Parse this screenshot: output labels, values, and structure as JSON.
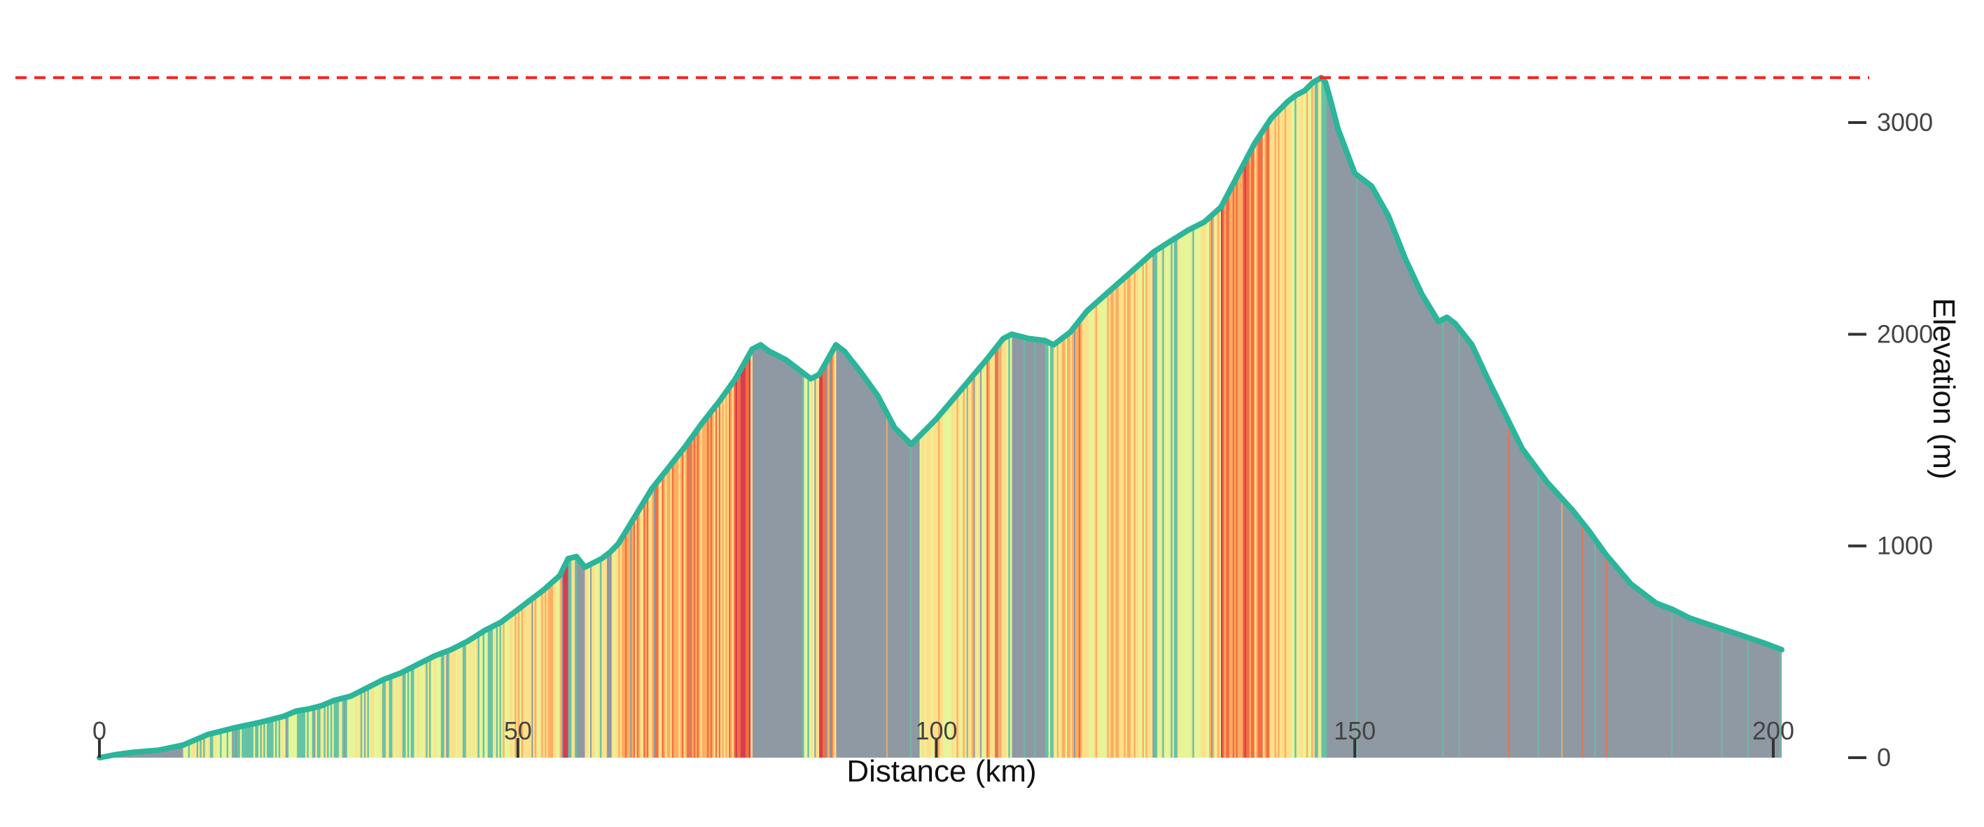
{
  "chart_data": {
    "type": "area",
    "title": "",
    "xlabel": "Distance (km)",
    "ylabel": "Elevation (m)",
    "xlim": [
      0,
      201.5
    ],
    "ylim": [
      0,
      3300
    ],
    "x_ticks": [
      0,
      50,
      100,
      150,
      200
    ],
    "y_ticks": [
      0,
      1000,
      2000,
      3000
    ],
    "x_tick_labels": [
      "0",
      "50",
      "100",
      "150",
      "200"
    ],
    "y_tick_labels": [
      "0",
      "1000",
      "2000",
      "3000"
    ],
    "grid": false,
    "y_axis_side": "right",
    "reference_line": {
      "y": 3212,
      "style": "dashed",
      "color": "#ff2020"
    },
    "colors": {
      "profile_line": "#2bb59a",
      "descent": "#8f99a3",
      "gradient_classes": [
        "#66c2a5",
        "#e6f598",
        "#fee08b",
        "#fdae61",
        "#f46d43",
        "#d53e4f",
        "#9e0142"
      ]
    },
    "profile": {
      "x": [
        0,
        2,
        4,
        7,
        10,
        13,
        16,
        19,
        22,
        23.5,
        25,
        26.5,
        28,
        30,
        32,
        34,
        36,
        38,
        40,
        42,
        44,
        46,
        48,
        50,
        51,
        53,
        55,
        56,
        57,
        58,
        59,
        60,
        61,
        62,
        64,
        66,
        68,
        70,
        72,
        74,
        76,
        77,
        78,
        79,
        80,
        81,
        82,
        83,
        84,
        85,
        86,
        87,
        88,
        89,
        91,
        93,
        95,
        97,
        98,
        100,
        103,
        106,
        108,
        109,
        111,
        113,
        114,
        116,
        118,
        120,
        122,
        124,
        126,
        128,
        130,
        132,
        134,
        136,
        138,
        140,
        142,
        143,
        144,
        145,
        146,
        146.5,
        147,
        148,
        150,
        152,
        154,
        156,
        158,
        160,
        161,
        162,
        163,
        164,
        166,
        168,
        170,
        173,
        176,
        178,
        180,
        183,
        186,
        188,
        190,
        193,
        196,
        199,
        201
      ],
      "y": [
        0,
        15,
        25,
        35,
        60,
        110,
        140,
        165,
        195,
        220,
        230,
        245,
        270,
        290,
        330,
        370,
        400,
        440,
        480,
        510,
        550,
        600,
        640,
        700,
        730,
        790,
        860,
        940,
        950,
        900,
        920,
        940,
        970,
        1010,
        1140,
        1270,
        1370,
        1470,
        1580,
        1680,
        1790,
        1860,
        1930,
        1950,
        1920,
        1900,
        1880,
        1850,
        1820,
        1790,
        1810,
        1880,
        1950,
        1920,
        1820,
        1710,
        1560,
        1480,
        1520,
        1600,
        1740,
        1880,
        1980,
        2000,
        1980,
        1970,
        1950,
        2010,
        2110,
        2180,
        2250,
        2320,
        2390,
        2440,
        2490,
        2530,
        2600,
        2750,
        2900,
        3020,
        3100,
        3130,
        3150,
        3190,
        3212,
        3190,
        3120,
        2970,
        2760,
        2700,
        2560,
        2360,
        2190,
        2060,
        2080,
        2050,
        2000,
        1950,
        1780,
        1620,
        1460,
        1300,
        1170,
        1070,
        960,
        820,
        730,
        700,
        660,
        620,
        580,
        540,
        510
      ]
    },
    "climbs": [
      {
        "x": [
          10,
          57
        ],
        "y": [
          60,
          950
        ]
      },
      {
        "x": [
          58,
          78
        ],
        "y": [
          900,
          1950
        ]
      },
      {
        "x": [
          84,
          88
        ],
        "y": [
          1790,
          1950
        ]
      },
      {
        "x": [
          98,
          109
        ],
        "y": [
          1480,
          2000
        ]
      },
      {
        "x": [
          113,
          146.5
        ],
        "y": [
          1950,
          3212
        ]
      }
    ]
  }
}
